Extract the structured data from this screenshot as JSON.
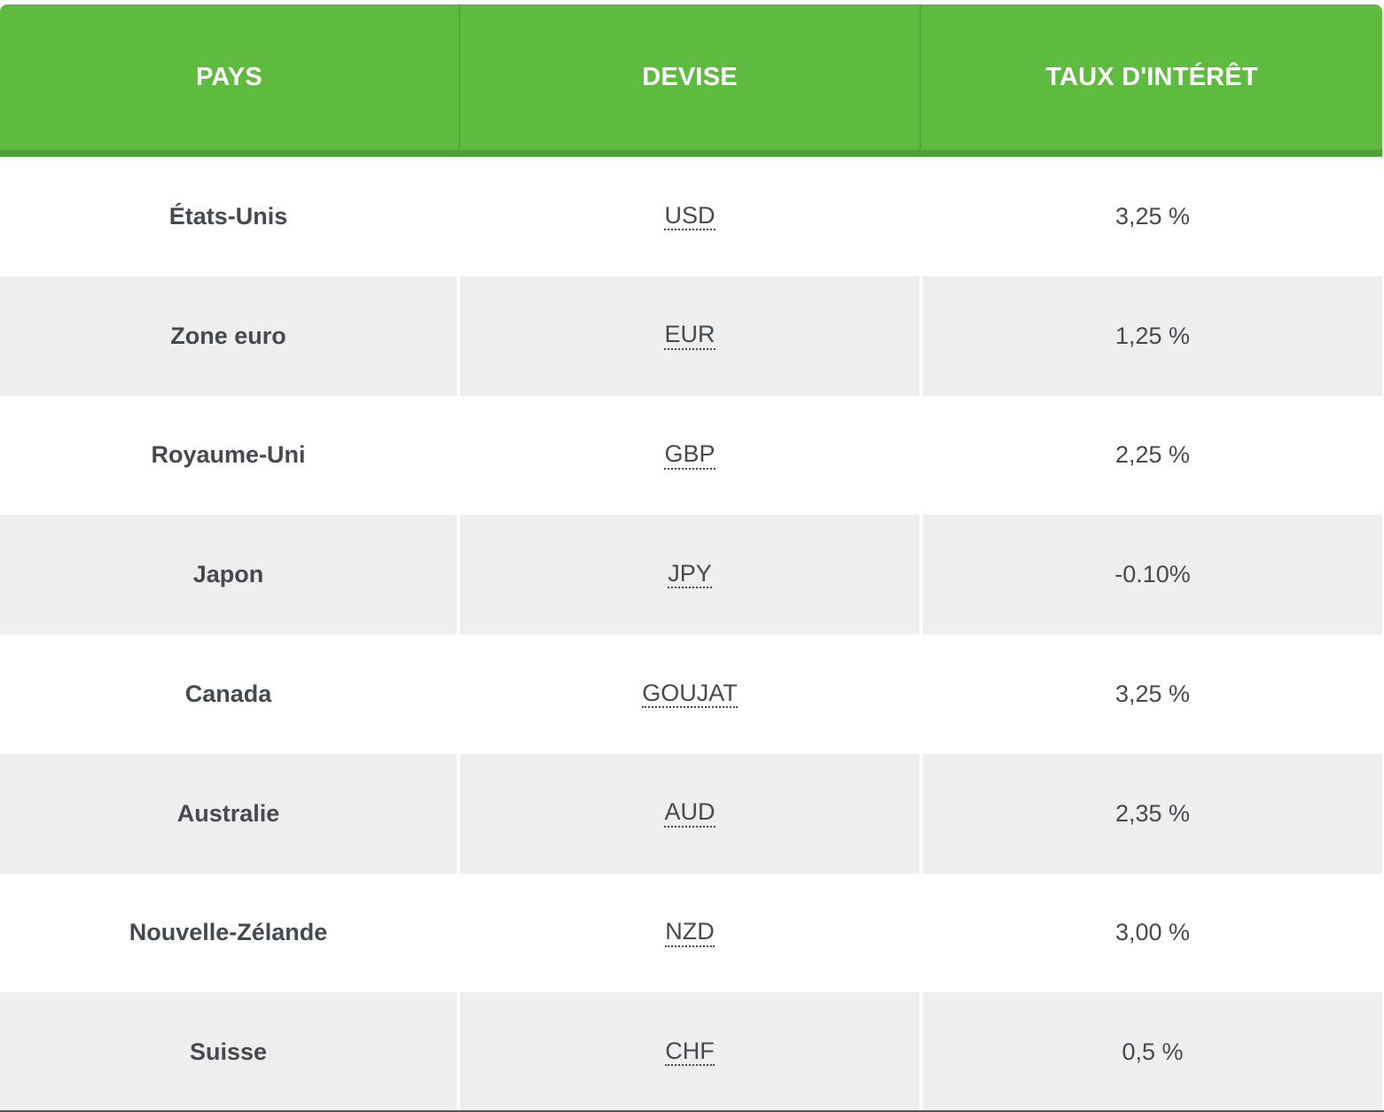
{
  "table": {
    "headers": [
      "PAYS",
      "DEVISE",
      "TAUX D'INTÉRÊT"
    ],
    "rows": [
      {
        "pays": "États-Unis",
        "devise": "USD",
        "taux": "3,25 %"
      },
      {
        "pays": "Zone euro",
        "devise": "EUR",
        "taux": "1,25 %"
      },
      {
        "pays": "Royaume-Uni",
        "devise": "GBP",
        "taux": "2,25 %"
      },
      {
        "pays": "Japon",
        "devise": "JPY",
        "taux": "-0.10%"
      },
      {
        "pays": "Canada",
        "devise": "GOUJAT",
        "taux": "3,25 %"
      },
      {
        "pays": "Australie",
        "devise": "AUD",
        "taux": "2,35 %"
      },
      {
        "pays": "Nouvelle-Zélande",
        "devise": "NZD",
        "taux": "3,00 %"
      },
      {
        "pays": "Suisse",
        "devise": "CHF",
        "taux": "0,5 %"
      }
    ]
  },
  "colors": {
    "header_bg": "#5fba40",
    "header_border": "#4fa237",
    "row_alt_bg": "#eeeeee",
    "text": "#454a50"
  }
}
